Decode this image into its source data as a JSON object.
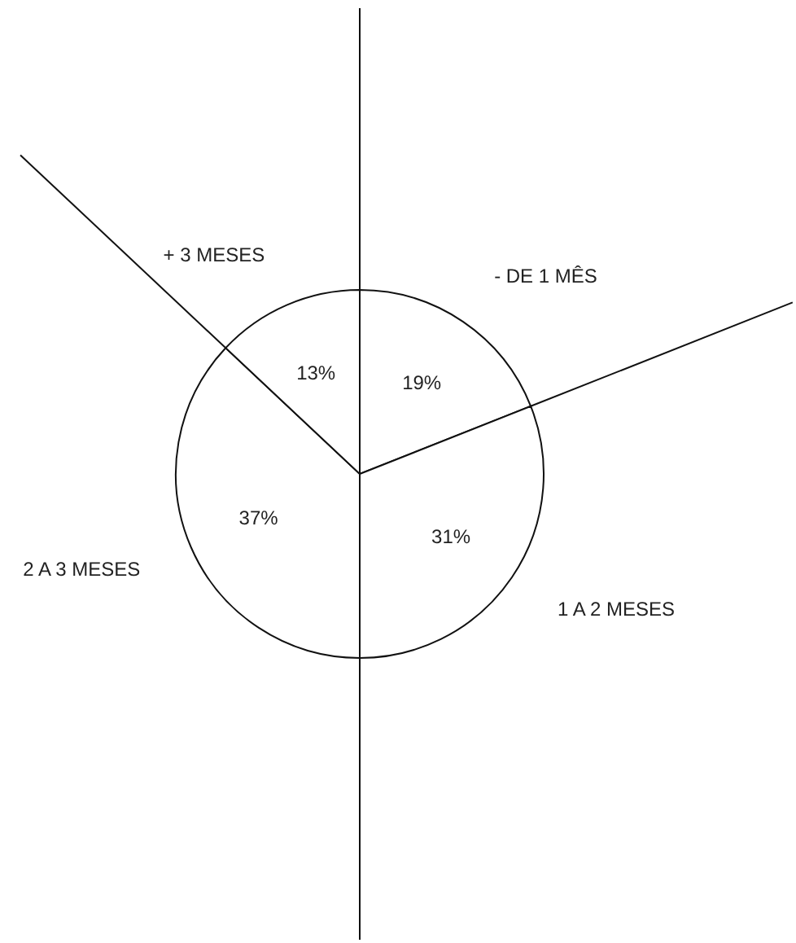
{
  "chart_data": {
    "type": "pie",
    "categories": [
      "- DE 1 MÊS",
      "1 A 2 MESES",
      "2 A 3 MESES",
      "+ 3 MESES"
    ],
    "values": [
      19,
      31,
      37,
      13
    ],
    "colors": [
      "#ffffff",
      "#ffffff",
      "#ffffff",
      "#ffffff"
    ],
    "value_labels": [
      "19%",
      "31%",
      "37%",
      "13%"
    ]
  }
}
